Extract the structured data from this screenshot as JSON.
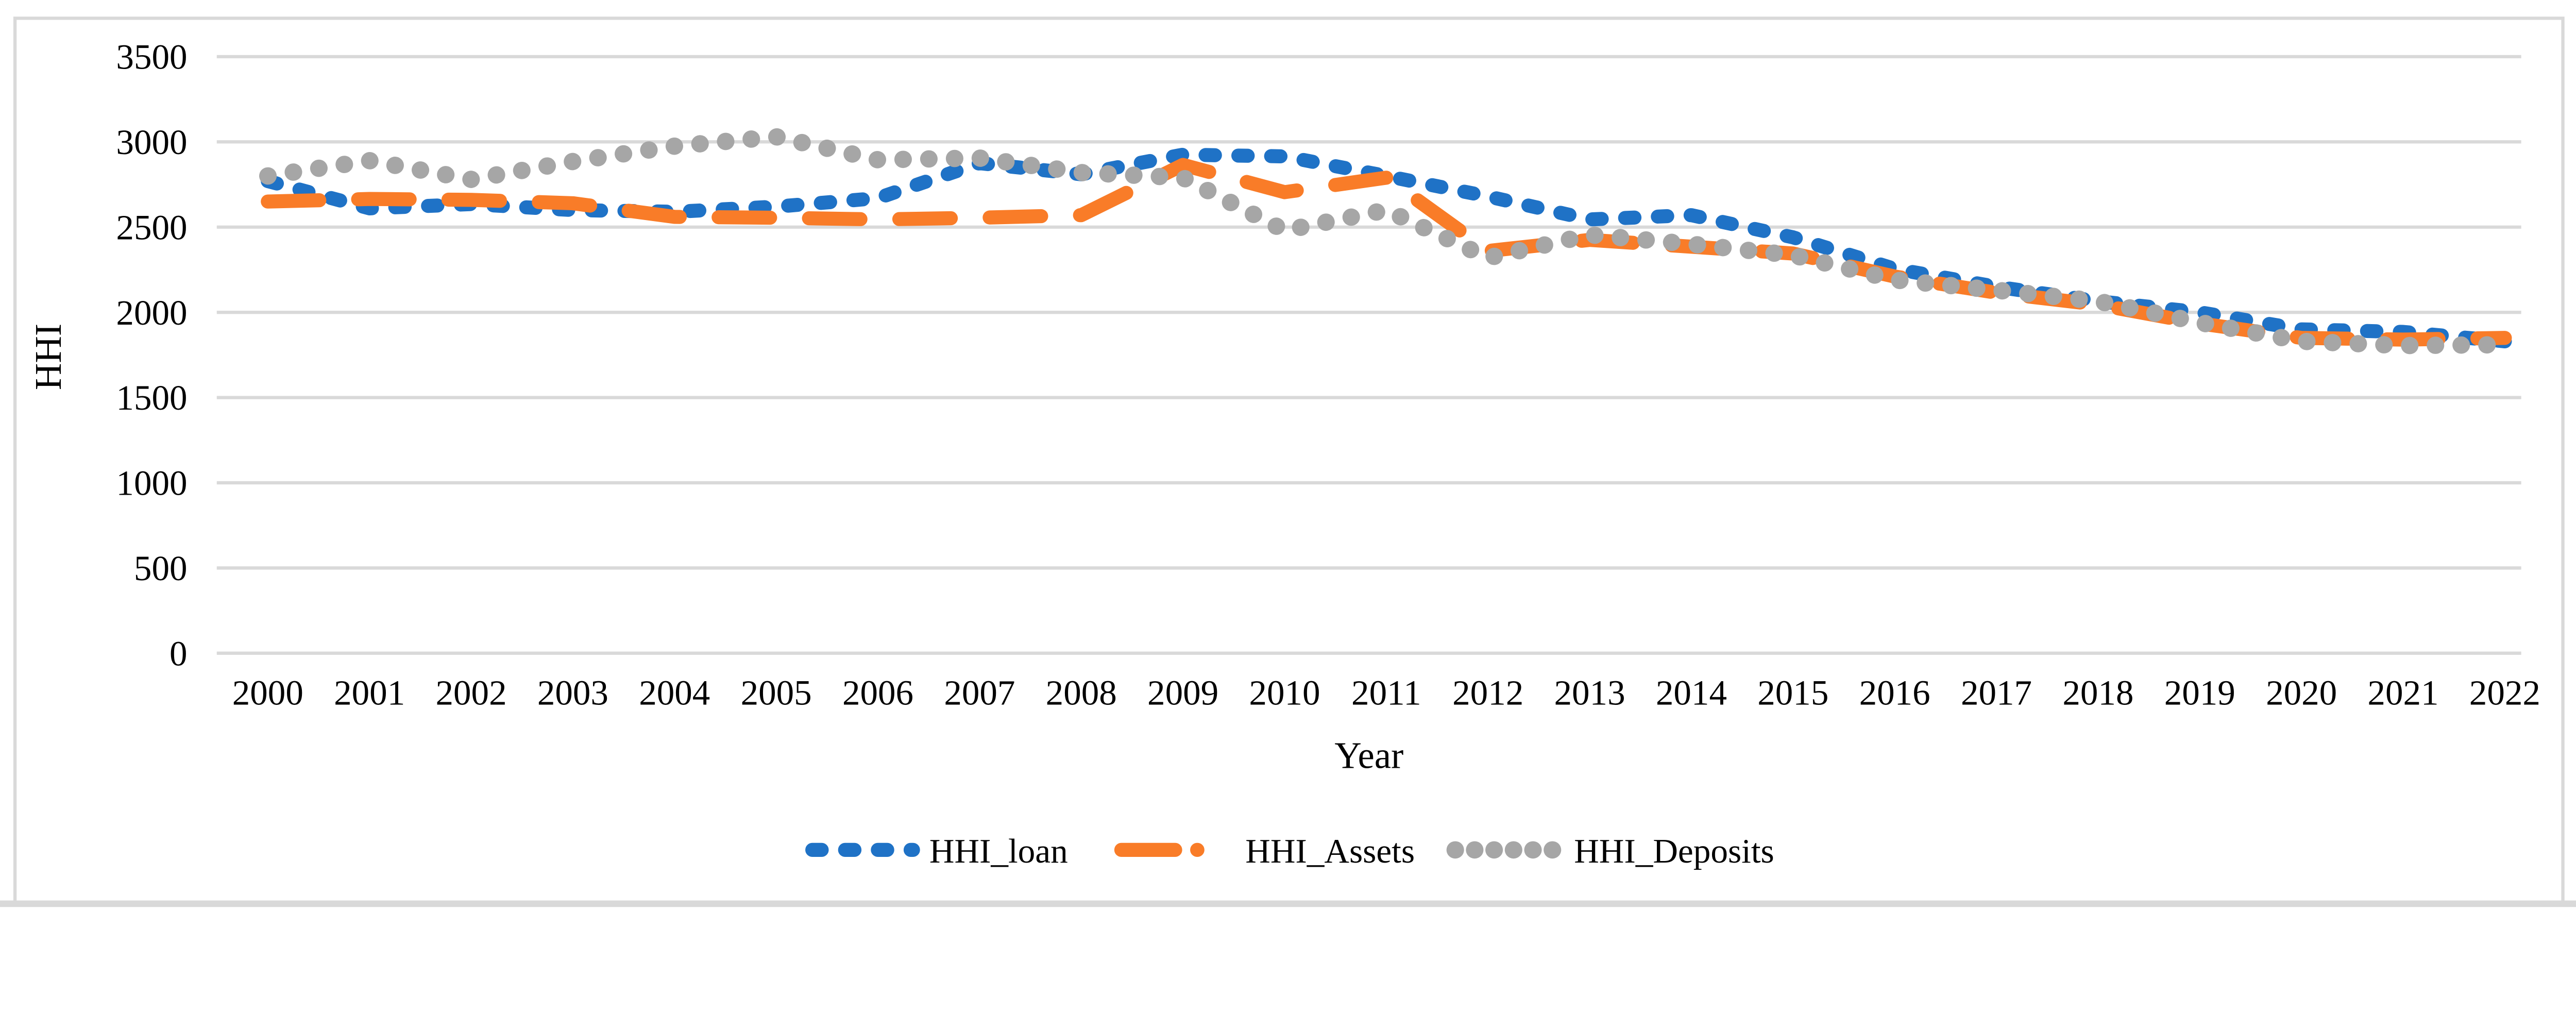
{
  "figure": {
    "background": "#FFFFFF",
    "border_color": "#D9D9D9",
    "gridline_color": "#D9D9D9",
    "text_color": "#000000"
  },
  "chart_data": {
    "type": "line",
    "title": "",
    "xlabel": "Year",
    "ylabel": "HHI",
    "x": [
      2000,
      2001,
      2002,
      2003,
      2004,
      2005,
      2006,
      2007,
      2008,
      2009,
      2010,
      2011,
      2012,
      2013,
      2014,
      2015,
      2016,
      2017,
      2018,
      2019,
      2020,
      2021,
      2022
    ],
    "ylim": [
      0,
      3500
    ],
    "ytick_step": 500,
    "yticks": [
      3500,
      3000,
      2500,
      2000,
      1500,
      1000,
      500,
      0
    ],
    "grid": "horizontal-only",
    "legend_position": "bottom-center",
    "series": [
      {
        "name": "HHI_loan",
        "color": "#1F72C6",
        "line_style": "dashed",
        "values": [
          2770,
          2610,
          2635,
          2600,
          2590,
          2620,
          2670,
          2875,
          2810,
          2925,
          2915,
          2800,
          2680,
          2545,
          2570,
          2440,
          2255,
          2150,
          2065,
          2000,
          1900,
          1885,
          1830
        ]
      },
      {
        "name": "HHI_Assets",
        "color": "#F97C28",
        "line_style": "long-dash",
        "values": [
          2650,
          2665,
          2660,
          2640,
          2560,
          2555,
          2545,
          2555,
          2570,
          2865,
          2705,
          2790,
          2360,
          2425,
          2385,
          2345,
          2210,
          2115,
          2045,
          1935,
          1850,
          1840,
          1850
        ]
      },
      {
        "name": "HHI_Deposits",
        "color": "#A6A6A6",
        "line_style": "dotted",
        "values": [
          2800,
          2890,
          2780,
          2885,
          2975,
          3030,
          2895,
          2905,
          2820,
          2790,
          2480,
          2600,
          2320,
          2455,
          2400,
          2335,
          2190,
          2130,
          2065,
          1940,
          1830,
          1805,
          1810
        ]
      }
    ]
  }
}
